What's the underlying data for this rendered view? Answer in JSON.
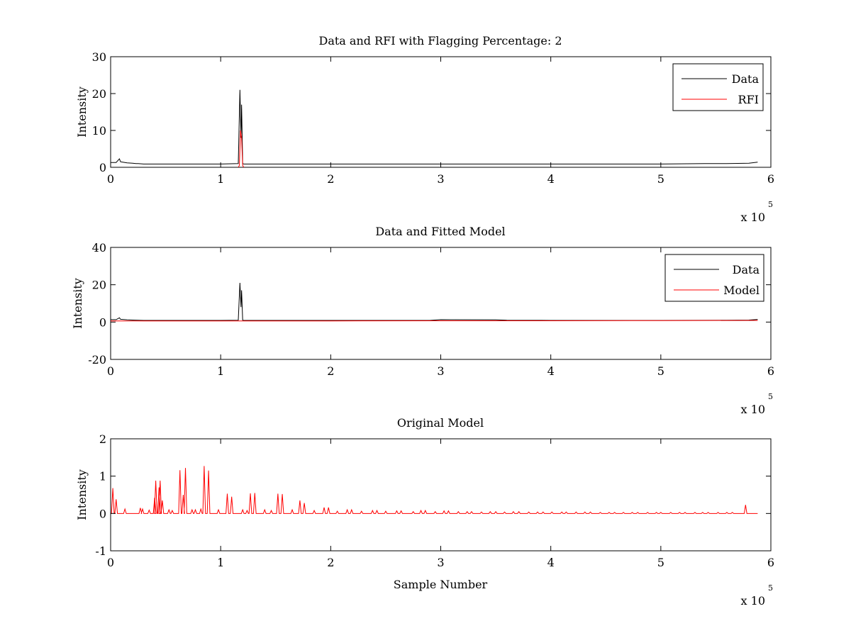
{
  "chart_data": [
    {
      "type": "line",
      "title": "Data and RFI with Flagging Percentage: 2",
      "xlabel": "",
      "ylabel": "Intensity",
      "xlim": [
        0,
        600000
      ],
      "ylim": [
        0,
        30
      ],
      "x_ticks": [
        "0",
        "1",
        "2",
        "3",
        "4",
        "5",
        "6"
      ],
      "y_ticks": [
        "0",
        "10",
        "20",
        "30"
      ],
      "x_multiplier": {
        "base": "x 10",
        "exponent": "5"
      },
      "grid": false,
      "legend_position": "top-right",
      "legend": [
        "Data",
        "RFI"
      ],
      "series": [
        {
          "name": "Data",
          "color": "#000000",
          "x": [
            0,
            5000,
            8000,
            9000,
            11000,
            15000,
            20000,
            23000,
            25000,
            30000,
            60000,
            100000,
            116000,
            117500,
            118500,
            119000,
            120000,
            121000,
            124000,
            200000,
            300000,
            400000,
            500000,
            540000,
            560000,
            580000,
            588000
          ],
          "y": [
            1.3,
            1.3,
            2.3,
            1.5,
            1.4,
            1.2,
            1.1,
            1.0,
            1.0,
            0.9,
            0.9,
            0.9,
            1.0,
            21.0,
            8.0,
            17.0,
            1.0,
            0.9,
            0.9,
            0.9,
            0.9,
            0.9,
            0.9,
            1.0,
            1.0,
            1.1,
            1.4
          ]
        },
        {
          "name": "RFI",
          "color": "#ff0000",
          "x": [
            116000,
            117000,
            118000,
            119000,
            120000,
            121000
          ],
          "y": [
            0,
            0.5,
            10.0,
            8.0,
            0.5,
            0
          ]
        }
      ]
    },
    {
      "type": "line",
      "title": "Data and Fitted Model",
      "xlabel": "",
      "ylabel": "Intensity",
      "xlim": [
        0,
        600000
      ],
      "ylim": [
        -20,
        40
      ],
      "x_ticks": [
        "0",
        "1",
        "2",
        "3",
        "4",
        "5",
        "6"
      ],
      "y_ticks": [
        "-20",
        "0",
        "20",
        "40"
      ],
      "x_multiplier": {
        "base": "x 10",
        "exponent": "5"
      },
      "grid": false,
      "legend_position": "top-right",
      "legend": [
        "Data",
        "Model"
      ],
      "series": [
        {
          "name": "Data",
          "color": "#000000",
          "x": [
            0,
            5000,
            8000,
            9000,
            11000,
            15000,
            20000,
            25000,
            30000,
            60000,
            100000,
            116000,
            117500,
            118500,
            119000,
            120000,
            121000,
            124000,
            290000,
            300000,
            350000,
            360000,
            400000,
            500000,
            560000,
            580000,
            588000
          ],
          "y": [
            1.3,
            1.3,
            2.3,
            1.5,
            1.4,
            1.2,
            1.1,
            1.0,
            0.9,
            0.9,
            0.9,
            1.0,
            21.0,
            8.0,
            17.0,
            1.0,
            0.9,
            0.9,
            0.9,
            1.3,
            1.2,
            1.0,
            0.9,
            0.9,
            1.0,
            1.1,
            1.4
          ]
        },
        {
          "name": "Model",
          "color": "#ff0000",
          "x": [
            0,
            100000,
            200000,
            300000,
            400000,
            500000,
            588000
          ],
          "y": [
            0.6,
            0.6,
            0.6,
            0.7,
            0.7,
            0.8,
            0.9
          ]
        }
      ]
    },
    {
      "type": "line",
      "title": "Original Model",
      "xlabel": "Sample Number",
      "ylabel": "Intensity",
      "xlim": [
        0,
        600000
      ],
      "ylim": [
        -1,
        2
      ],
      "x_ticks": [
        "0",
        "1",
        "2",
        "3",
        "4",
        "5",
        "6"
      ],
      "y_ticks": [
        "-1",
        "0",
        "1",
        "2"
      ],
      "x_multiplier": {
        "base": "x 10",
        "exponent": "5"
      },
      "grid": false,
      "legend_position": "none",
      "series": [
        {
          "name": "",
          "color": "#ff0000",
          "baseline": 0,
          "x_end": 588000,
          "peaks": [
            [
              2000,
              0.68
            ],
            [
              5000,
              0.38
            ],
            [
              13000,
              0.12
            ],
            [
              27000,
              0.15
            ],
            [
              29000,
              0.12
            ],
            [
              35000,
              0.09
            ],
            [
              40000,
              0.42
            ],
            [
              41000,
              0.88
            ],
            [
              44000,
              0.7
            ],
            [
              45000,
              0.88
            ],
            [
              47000,
              0.35
            ],
            [
              53000,
              0.1
            ],
            [
              56000,
              0.08
            ],
            [
              63000,
              1.16
            ],
            [
              66000,
              0.5
            ],
            [
              68000,
              1.22
            ],
            [
              74000,
              0.1
            ],
            [
              77000,
              0.1
            ],
            [
              82000,
              0.12
            ],
            [
              85000,
              1.27
            ],
            [
              89000,
              1.15
            ],
            [
              98000,
              0.1
            ],
            [
              106000,
              0.53
            ],
            [
              110000,
              0.45
            ],
            [
              120000,
              0.1
            ],
            [
              124000,
              0.08
            ],
            [
              127000,
              0.54
            ],
            [
              131000,
              0.55
            ],
            [
              140000,
              0.1
            ],
            [
              146000,
              0.08
            ],
            [
              152000,
              0.53
            ],
            [
              156000,
              0.52
            ],
            [
              165000,
              0.1
            ],
            [
              172000,
              0.35
            ],
            [
              176000,
              0.28
            ],
            [
              185000,
              0.08
            ],
            [
              194000,
              0.16
            ],
            [
              198000,
              0.16
            ],
            [
              206000,
              0.06
            ],
            [
              215000,
              0.1
            ],
            [
              219000,
              0.1
            ],
            [
              228000,
              0.06
            ],
            [
              238000,
              0.08
            ],
            [
              242000,
              0.08
            ],
            [
              250000,
              0.06
            ],
            [
              260000,
              0.07
            ],
            [
              264000,
              0.07
            ],
            [
              275000,
              0.05
            ],
            [
              282000,
              0.08
            ],
            [
              286000,
              0.08
            ],
            [
              295000,
              0.05
            ],
            [
              303000,
              0.07
            ],
            [
              307000,
              0.07
            ],
            [
              316000,
              0.05
            ],
            [
              324000,
              0.05
            ],
            [
              328000,
              0.05
            ],
            [
              337000,
              0.04
            ],
            [
              345000,
              0.05
            ],
            [
              350000,
              0.05
            ],
            [
              358000,
              0.04
            ],
            [
              366000,
              0.05
            ],
            [
              371000,
              0.05
            ],
            [
              380000,
              0.04
            ],
            [
              388000,
              0.04
            ],
            [
              393000,
              0.04
            ],
            [
              401000,
              0.04
            ],
            [
              410000,
              0.04
            ],
            [
              414000,
              0.04
            ],
            [
              423000,
              0.04
            ],
            [
              431000,
              0.04
            ],
            [
              436000,
              0.04
            ],
            [
              445000,
              0.03
            ],
            [
              453000,
              0.03
            ],
            [
              458000,
              0.03
            ],
            [
              466000,
              0.03
            ],
            [
              474000,
              0.03
            ],
            [
              479000,
              0.03
            ],
            [
              488000,
              0.03
            ],
            [
              496000,
              0.03
            ],
            [
              500000,
              0.03
            ],
            [
              509000,
              0.03
            ],
            [
              517000,
              0.03
            ],
            [
              522000,
              0.03
            ],
            [
              531000,
              0.03
            ],
            [
              538000,
              0.03
            ],
            [
              543000,
              0.03
            ],
            [
              552000,
              0.03
            ],
            [
              560000,
              0.03
            ],
            [
              565000,
              0.03
            ],
            [
              577000,
              0.23
            ]
          ]
        }
      ]
    }
  ]
}
